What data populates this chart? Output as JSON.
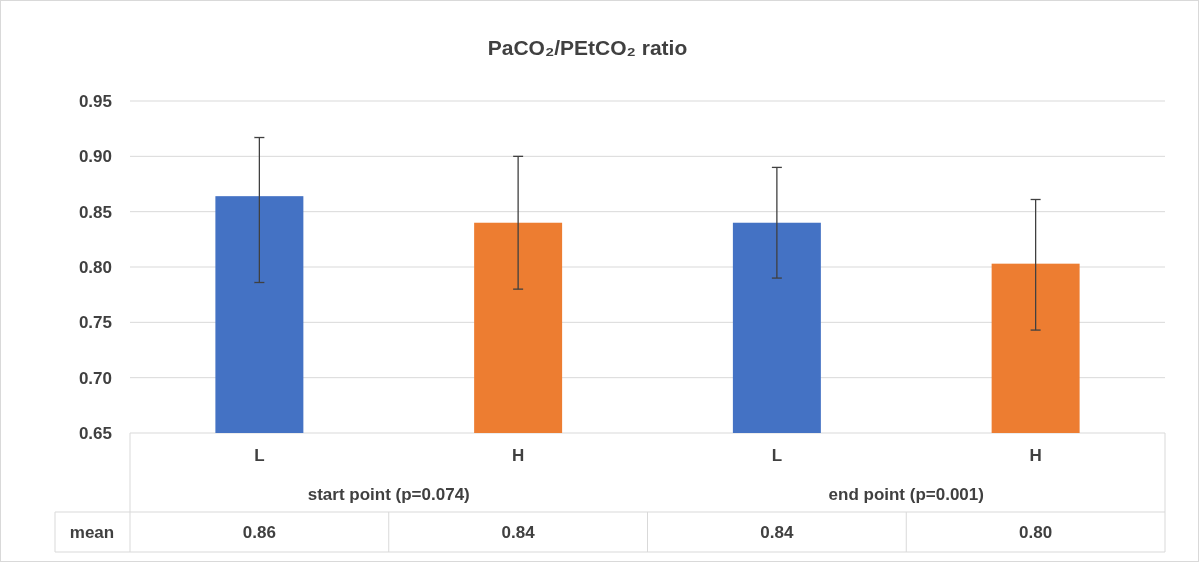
{
  "chart_data": {
    "type": "bar",
    "title": "PaCO₂/PEtCO₂ ratio",
    "categories": [
      "L",
      "H",
      "L",
      "H"
    ],
    "values": [
      0.864,
      0.84,
      0.84,
      0.803
    ],
    "colors": [
      "#4472c4",
      "#ed7d31",
      "#4472c4",
      "#ed7d31"
    ],
    "errors": [
      [
        0.786,
        0.917
      ],
      [
        0.78,
        0.9
      ],
      [
        0.79,
        0.89
      ],
      [
        0.743,
        0.861
      ]
    ],
    "value_labels": [
      "0.86",
      "0.84",
      "0.84",
      "0.80"
    ],
    "ylim": [
      0.65,
      0.95
    ],
    "yticks": [
      {
        "value": 0.65,
        "label": "0.65"
      },
      {
        "value": 0.7,
        "label": "0.70"
      },
      {
        "value": 0.75,
        "label": "0.75"
      },
      {
        "value": 0.8,
        "label": "0.80"
      },
      {
        "value": 0.85,
        "label": "0.85"
      },
      {
        "value": 0.9,
        "label": "0.90"
      },
      {
        "value": 0.95,
        "label": "0.95"
      }
    ],
    "grid": "y",
    "annotations": [
      "mean",
      "start point (p=0.074)",
      "end point (p=0.001)"
    ]
  }
}
